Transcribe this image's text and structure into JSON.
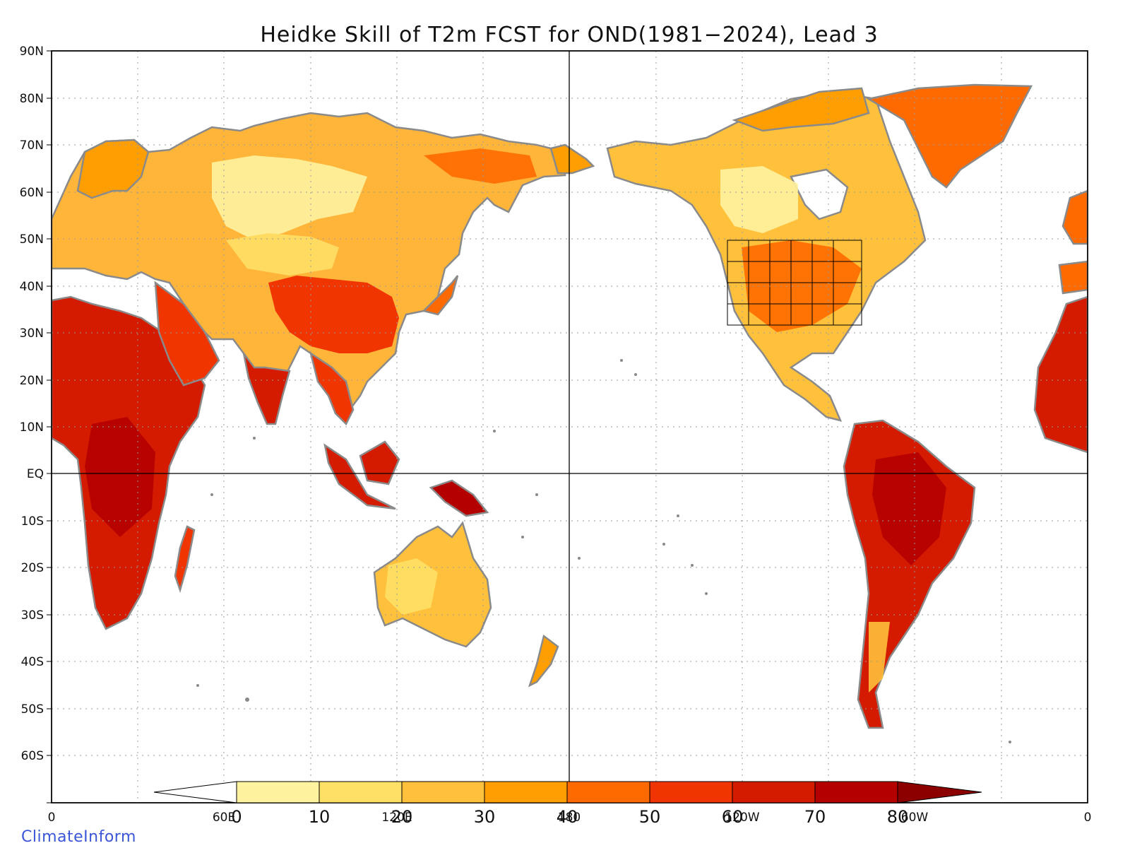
{
  "title": "Heidke Skill of T2m FCST for OND(1981−2024), Lead 3",
  "lat_labels": [
    "90N",
    "80N",
    "70N",
    "60N",
    "50N",
    "40N",
    "30N",
    "20N",
    "10N",
    "EQ",
    "10S",
    "20S",
    "30S",
    "40S",
    "50S",
    "60S"
  ],
  "lon_labels": [
    "0",
    "60E",
    "120E",
    "180",
    "120W",
    "60W",
    "0"
  ],
  "colorbar": {
    "ticks": [
      "0",
      "10",
      "20",
      "30",
      "40",
      "50",
      "60",
      "70",
      "80"
    ],
    "colors": [
      "#ffffff",
      "#fff3a0",
      "#ffe066",
      "#ffc13b",
      "#ff9e00",
      "#ff6a00",
      "#f03500",
      "#d41b00",
      "#b50000",
      "#8c0000"
    ]
  },
  "brand": "ClimateInform"
}
